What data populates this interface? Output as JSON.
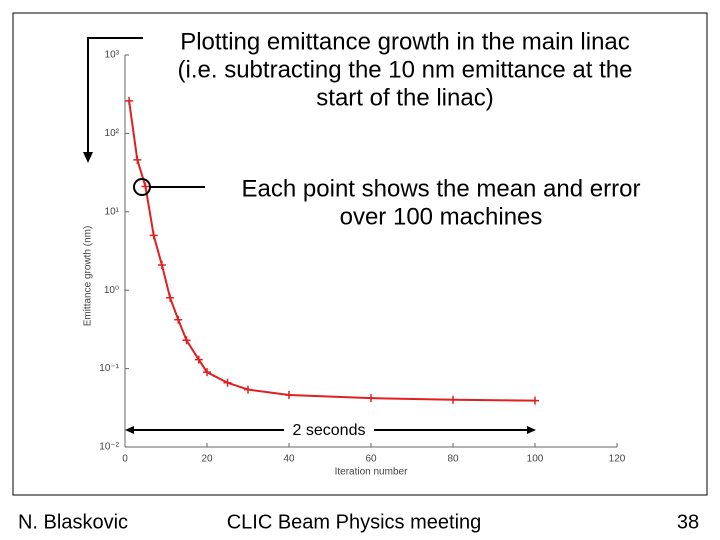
{
  "chart_data": {
    "type": "line",
    "annotation_lines": [
      "Plotting emittance growth in the main linac",
      "(i.e. subtracting the 10 nm emittance at the",
      "start of the linac)"
    ],
    "callout_lines": [
      "Each point shows the mean and error",
      "over 100 machines"
    ],
    "span_label": "2 seconds",
    "xlabel": "Iteration number",
    "ylabel": "Emittance growth (nm)",
    "log_y": true,
    "x": [
      1,
      3,
      5,
      7,
      9,
      11,
      13,
      15,
      18,
      20,
      25,
      30,
      40,
      60,
      80,
      100
    ],
    "series": [
      {
        "name": "Emittance growth",
        "color": "#e02020",
        "values": [
          260,
          46,
          21,
          5,
          2.1,
          0.8,
          0.42,
          0.23,
          0.13,
          0.09,
          0.066,
          0.054,
          0.046,
          0.042,
          0.04,
          0.039
        ]
      }
    ],
    "xlim": [
      0,
      120
    ],
    "xticks": [
      0,
      20,
      40,
      60,
      80,
      100,
      120
    ],
    "ylim": [
      0.01,
      1000
    ],
    "yticks": [
      {
        "value": 0.01,
        "label": "10⁻²"
      },
      {
        "value": 0.1,
        "label": "10⁻¹"
      },
      {
        "value": 1,
        "label": "10⁰"
      },
      {
        "value": 10,
        "label": "10¹"
      },
      {
        "value": 100,
        "label": "10²"
      },
      {
        "value": 1000,
        "label": "10³"
      }
    ]
  },
  "footer": {
    "author": "N. Blaskovic",
    "meeting": "CLIC Beam Physics meeting",
    "page": "38"
  }
}
